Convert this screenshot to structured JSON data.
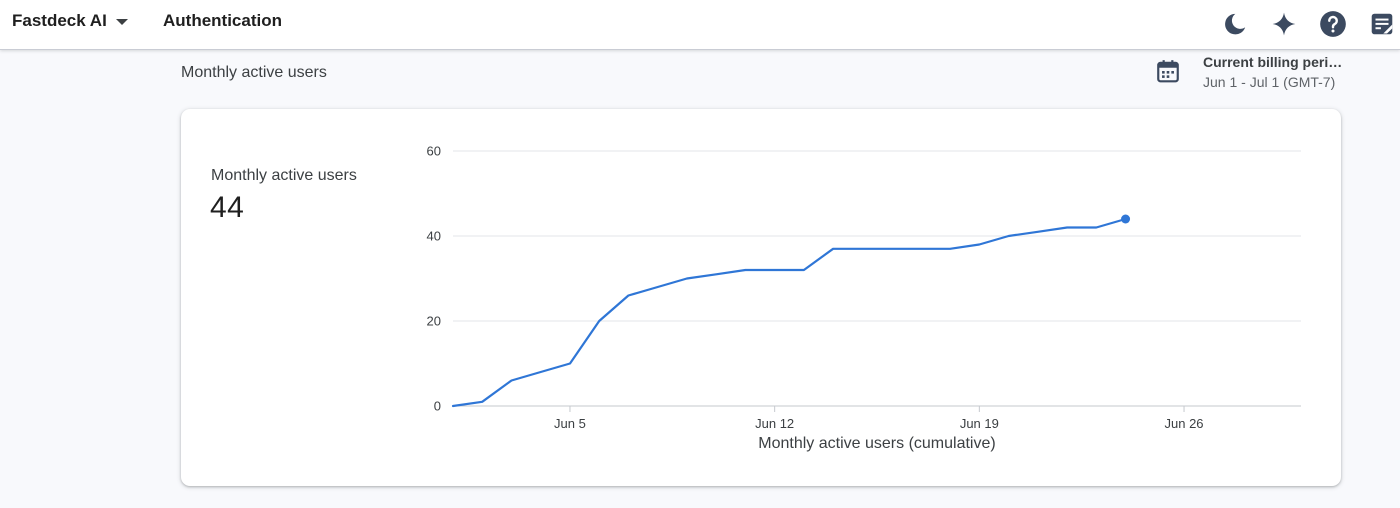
{
  "header": {
    "project_name": "Fastdeck AI",
    "product_name": "Authentication",
    "icons": [
      "dark-mode-icon",
      "sparkle-icon",
      "help-icon",
      "notes-icon"
    ]
  },
  "section": {
    "title": "Monthly active users"
  },
  "billing": {
    "label": "Current billing period",
    "range": "Jun 1 - Jul 1 (GMT-7)",
    "icon": "calendar-icon"
  },
  "card": {
    "metric_label": "Monthly active users",
    "metric_value": "44"
  },
  "colors": {
    "line": "#2f76d6",
    "gridline": "#e3e5e8",
    "icon": "#3c4a60"
  },
  "chart_data": {
    "type": "line",
    "xlabel": "Monthly active users (cumulative)",
    "ylabel": "",
    "ylim": [
      0,
      60
    ],
    "yticks": [
      0,
      20,
      40,
      60
    ],
    "xlim": [
      1,
      30
    ],
    "xticks": [
      {
        "day": 5,
        "label": "Jun 5"
      },
      {
        "day": 12,
        "label": "Jun 12"
      },
      {
        "day": 19,
        "label": "Jun 19"
      },
      {
        "day": 26,
        "label": "Jun 26"
      }
    ],
    "grid": true,
    "series": [
      {
        "x": [
          1,
          2,
          3,
          4,
          5,
          6,
          7,
          8,
          9,
          10,
          11,
          12,
          13,
          14,
          15,
          16,
          17,
          18,
          19,
          20,
          21,
          22,
          23,
          24
        ],
        "y": [
          0,
          1,
          6,
          8,
          10,
          20,
          26,
          28,
          30,
          31,
          32,
          32,
          32,
          37,
          37,
          37,
          37,
          37,
          38,
          40,
          41,
          42,
          42,
          44
        ]
      }
    ]
  }
}
